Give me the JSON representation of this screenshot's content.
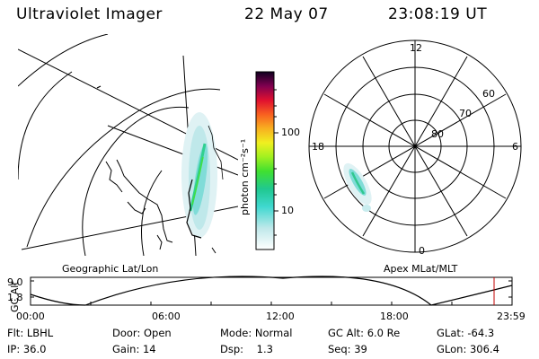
{
  "header": {
    "title": "Ultraviolet Imager",
    "date": "22 May 07",
    "time": "23:08:19 UT"
  },
  "colorbar": {
    "unit_label": "photon cm⁻²s⁻¹",
    "ticks": [
      "100",
      "10"
    ]
  },
  "map_left": {
    "label": "Geographic Lat/Lon"
  },
  "polar": {
    "label": "Apex MLat/MLT",
    "mlt_labels": [
      "12",
      "18",
      "6",
      "0"
    ],
    "lat_labels": [
      "60",
      "70",
      "80"
    ]
  },
  "orbit": {
    "axis_title": "GC Alt",
    "y_ticks": [
      "9.0",
      "1.8"
    ],
    "x_ticks": [
      "00:00",
      "06:00",
      "12:00",
      "18:00",
      "23:59"
    ]
  },
  "info": {
    "row1": [
      {
        "label": "Flt:",
        "value": "LBHL"
      },
      {
        "label": "Door:",
        "value": "Open"
      },
      {
        "label": "Mode:",
        "value": "Normal"
      },
      {
        "label": "GC Alt:",
        "value": "6.0 Re"
      },
      {
        "label": "GLat:",
        "value": "-64.3"
      }
    ],
    "row2": [
      {
        "label": "IP:",
        "value": "36.0"
      },
      {
        "label": "Gain:",
        "value": "14"
      },
      {
        "label": "Dsp:",
        "value": "1.3"
      },
      {
        "label": "Seq:",
        "value": "39"
      },
      {
        "label": "GLon:",
        "value": "306.4"
      }
    ]
  },
  "colors": {
    "colorbar_stops": [
      "#ffffff",
      "#9fdde0",
      "#40d8d0",
      "#20d070",
      "#50e030",
      "#c0f020",
      "#f8e030",
      "#f89020",
      "#f83020",
      "#c00040",
      "#600060",
      "#100020"
    ]
  }
}
